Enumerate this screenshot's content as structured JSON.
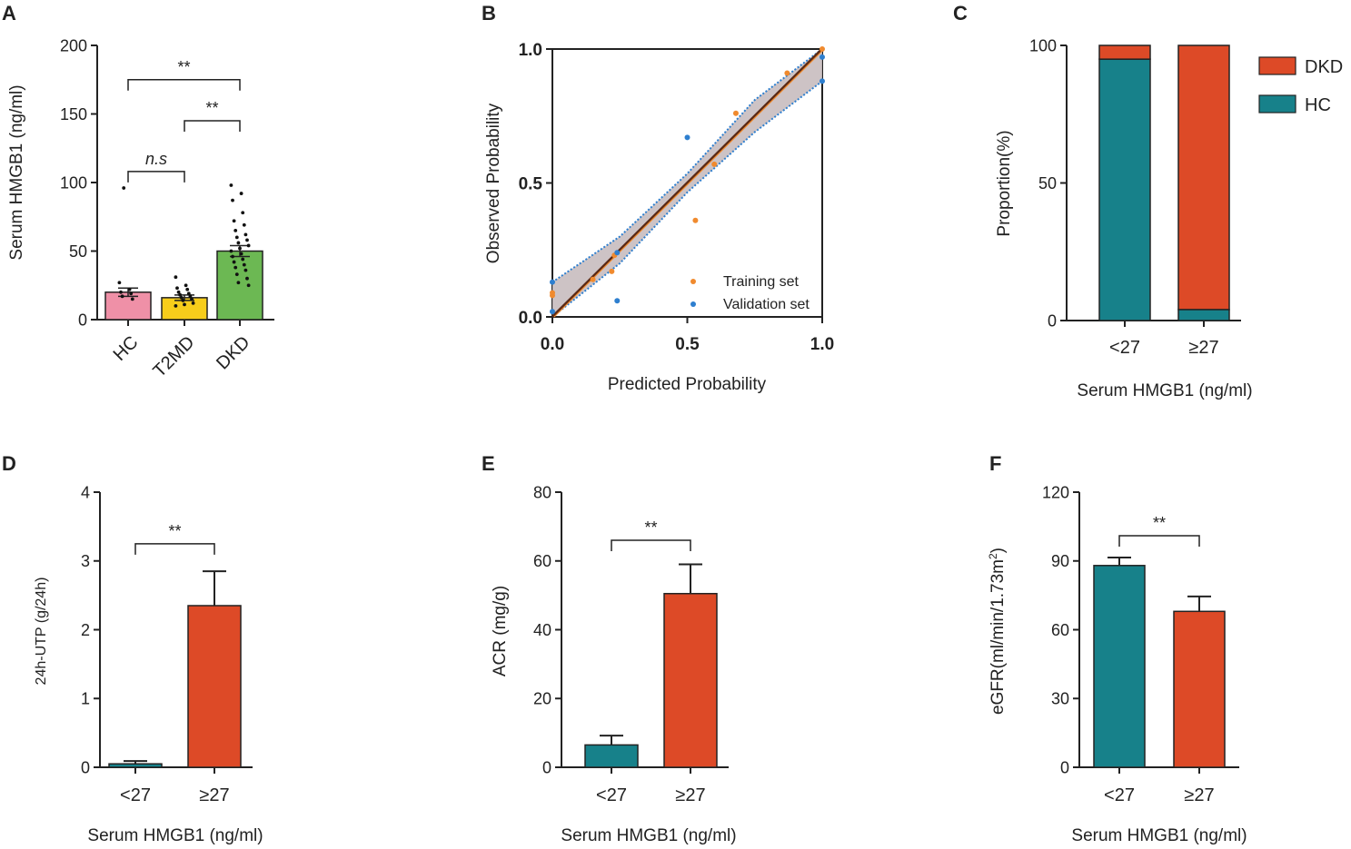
{
  "colors": {
    "teal": "#17818a",
    "orange": "#dd4a27",
    "pink": "#ef90a7",
    "yellow": "#f7cd1b",
    "green": "#6cb853",
    "brown": "#5a2a16",
    "band": "#c8bcbf",
    "training": "#f08a2e",
    "validation": "#2e7fcf"
  },
  "chart_data": [
    {
      "id": "A",
      "panel_label": "A",
      "type": "bar",
      "categories": [
        "HC",
        "T2MD",
        "DKD"
      ],
      "values": [
        20,
        16,
        50
      ],
      "errors": [
        3,
        2,
        4
      ],
      "points": [
        [
          27,
          22,
          20,
          19,
          17,
          15,
          96
        ],
        [
          31,
          25,
          23,
          22,
          20,
          19,
          18,
          17,
          16,
          15,
          14,
          12,
          11,
          10
        ],
        [
          98,
          92,
          87,
          78,
          72,
          69,
          65,
          62,
          60,
          58,
          56,
          54,
          52,
          50,
          48,
          46,
          44,
          42,
          40,
          38,
          36,
          33,
          30,
          27,
          25
        ]
      ],
      "ylabel": "Serum HMGB1 (ng/ml)",
      "xlabel": "",
      "ylim": [
        0,
        200
      ],
      "yticks": [
        "0",
        "50",
        "100",
        "150",
        "200"
      ],
      "comparisons": [
        {
          "from": 0,
          "to": 2,
          "label": "**",
          "y": 175
        },
        {
          "from": 1,
          "to": 2,
          "label": "**",
          "y": 145
        },
        {
          "from": 0,
          "to": 1,
          "label": "n.s",
          "y": 108
        }
      ]
    },
    {
      "id": "B",
      "panel_label": "B",
      "type": "scatter",
      "xlabel": "Predicted Probability",
      "ylabel": "Observed Probability",
      "xlim": [
        0,
        1
      ],
      "ylim": [
        0,
        1
      ],
      "xticks": [
        "0.0",
        "0.5",
        "1.0"
      ],
      "yticks": [
        "0.0",
        "0.5",
        "1.0"
      ],
      "fit_line": [
        [
          0,
          0
        ],
        [
          1,
          1
        ]
      ],
      "series": [
        {
          "name": "Training set",
          "points": [
            [
              0,
              0.09
            ],
            [
              0,
              0.08
            ],
            [
              0.15,
              0.14
            ],
            [
              0.22,
              0.17
            ],
            [
              0.23,
              0.23
            ],
            [
              0.53,
              0.36
            ],
            [
              0.6,
              0.57
            ],
            [
              0.68,
              0.76
            ],
            [
              0.87,
              0.91
            ],
            [
              1.0,
              1.0
            ]
          ]
        },
        {
          "name": "Validation set",
          "points": [
            [
              0,
              0.13
            ],
            [
              0,
              0.02
            ],
            [
              0.24,
              0.06
            ],
            [
              0.24,
              0.24
            ],
            [
              0.5,
              0.67
            ],
            [
              1.0,
              0.97
            ],
            [
              1.0,
              0.88
            ]
          ]
        }
      ]
    },
    {
      "id": "C",
      "panel_label": "C",
      "type": "bar",
      "stacked": true,
      "categories": [
        "<27",
        "≥27"
      ],
      "series": [
        {
          "name": "HC",
          "values": [
            95,
            4
          ]
        },
        {
          "name": "DKD",
          "values": [
            5,
            96
          ]
        }
      ],
      "xlabel": "Serum HMGB1 (ng/ml)",
      "ylabel": "Proportion(%)",
      "ylim": [
        0,
        100
      ],
      "yticks": [
        "0",
        "50",
        "100"
      ],
      "legend": [
        "DKD",
        "HC"
      ]
    },
    {
      "id": "D",
      "panel_label": "D",
      "type": "bar",
      "categories": [
        "<27",
        "≥27"
      ],
      "values": [
        0.05,
        2.35
      ],
      "errors": [
        0.04,
        0.5
      ],
      "xlabel": "Serum HMGB1 (ng/ml)",
      "ylabel": "24h-UTP (g/24h)",
      "ylim": [
        0,
        4
      ],
      "yticks": [
        "0",
        "1",
        "2",
        "3",
        "4"
      ],
      "comparisons": [
        {
          "from": 0,
          "to": 1,
          "label": "**",
          "y": 3.25
        }
      ]
    },
    {
      "id": "E",
      "panel_label": "E",
      "type": "bar",
      "categories": [
        "<27",
        "≥27"
      ],
      "values": [
        6.5,
        50.5
      ],
      "errors": [
        2.7,
        8.5
      ],
      "xlabel": "Serum HMGB1 (ng/ml)",
      "ylabel": "ACR (mg/g)",
      "ylim": [
        0,
        80
      ],
      "yticks": [
        "0",
        "20",
        "40",
        "60",
        "80"
      ],
      "comparisons": [
        {
          "from": 0,
          "to": 1,
          "label": "**",
          "y": 66
        }
      ]
    },
    {
      "id": "F",
      "panel_label": "F",
      "type": "bar",
      "categories": [
        "<27",
        "≥27"
      ],
      "values": [
        88,
        68
      ],
      "errors": [
        3.5,
        6.5
      ],
      "xlabel": "Serum HMGB1 (ng/ml)",
      "ylabel": "eGFR(ml/min/1.73m",
      "ylabel_sup": "2",
      "ylabel_end": ")",
      "ylim": [
        0,
        120
      ],
      "yticks": [
        "0",
        "30",
        "60",
        "90",
        "120"
      ],
      "comparisons": [
        {
          "from": 0,
          "to": 1,
          "label": "**",
          "y": 101
        }
      ]
    }
  ]
}
